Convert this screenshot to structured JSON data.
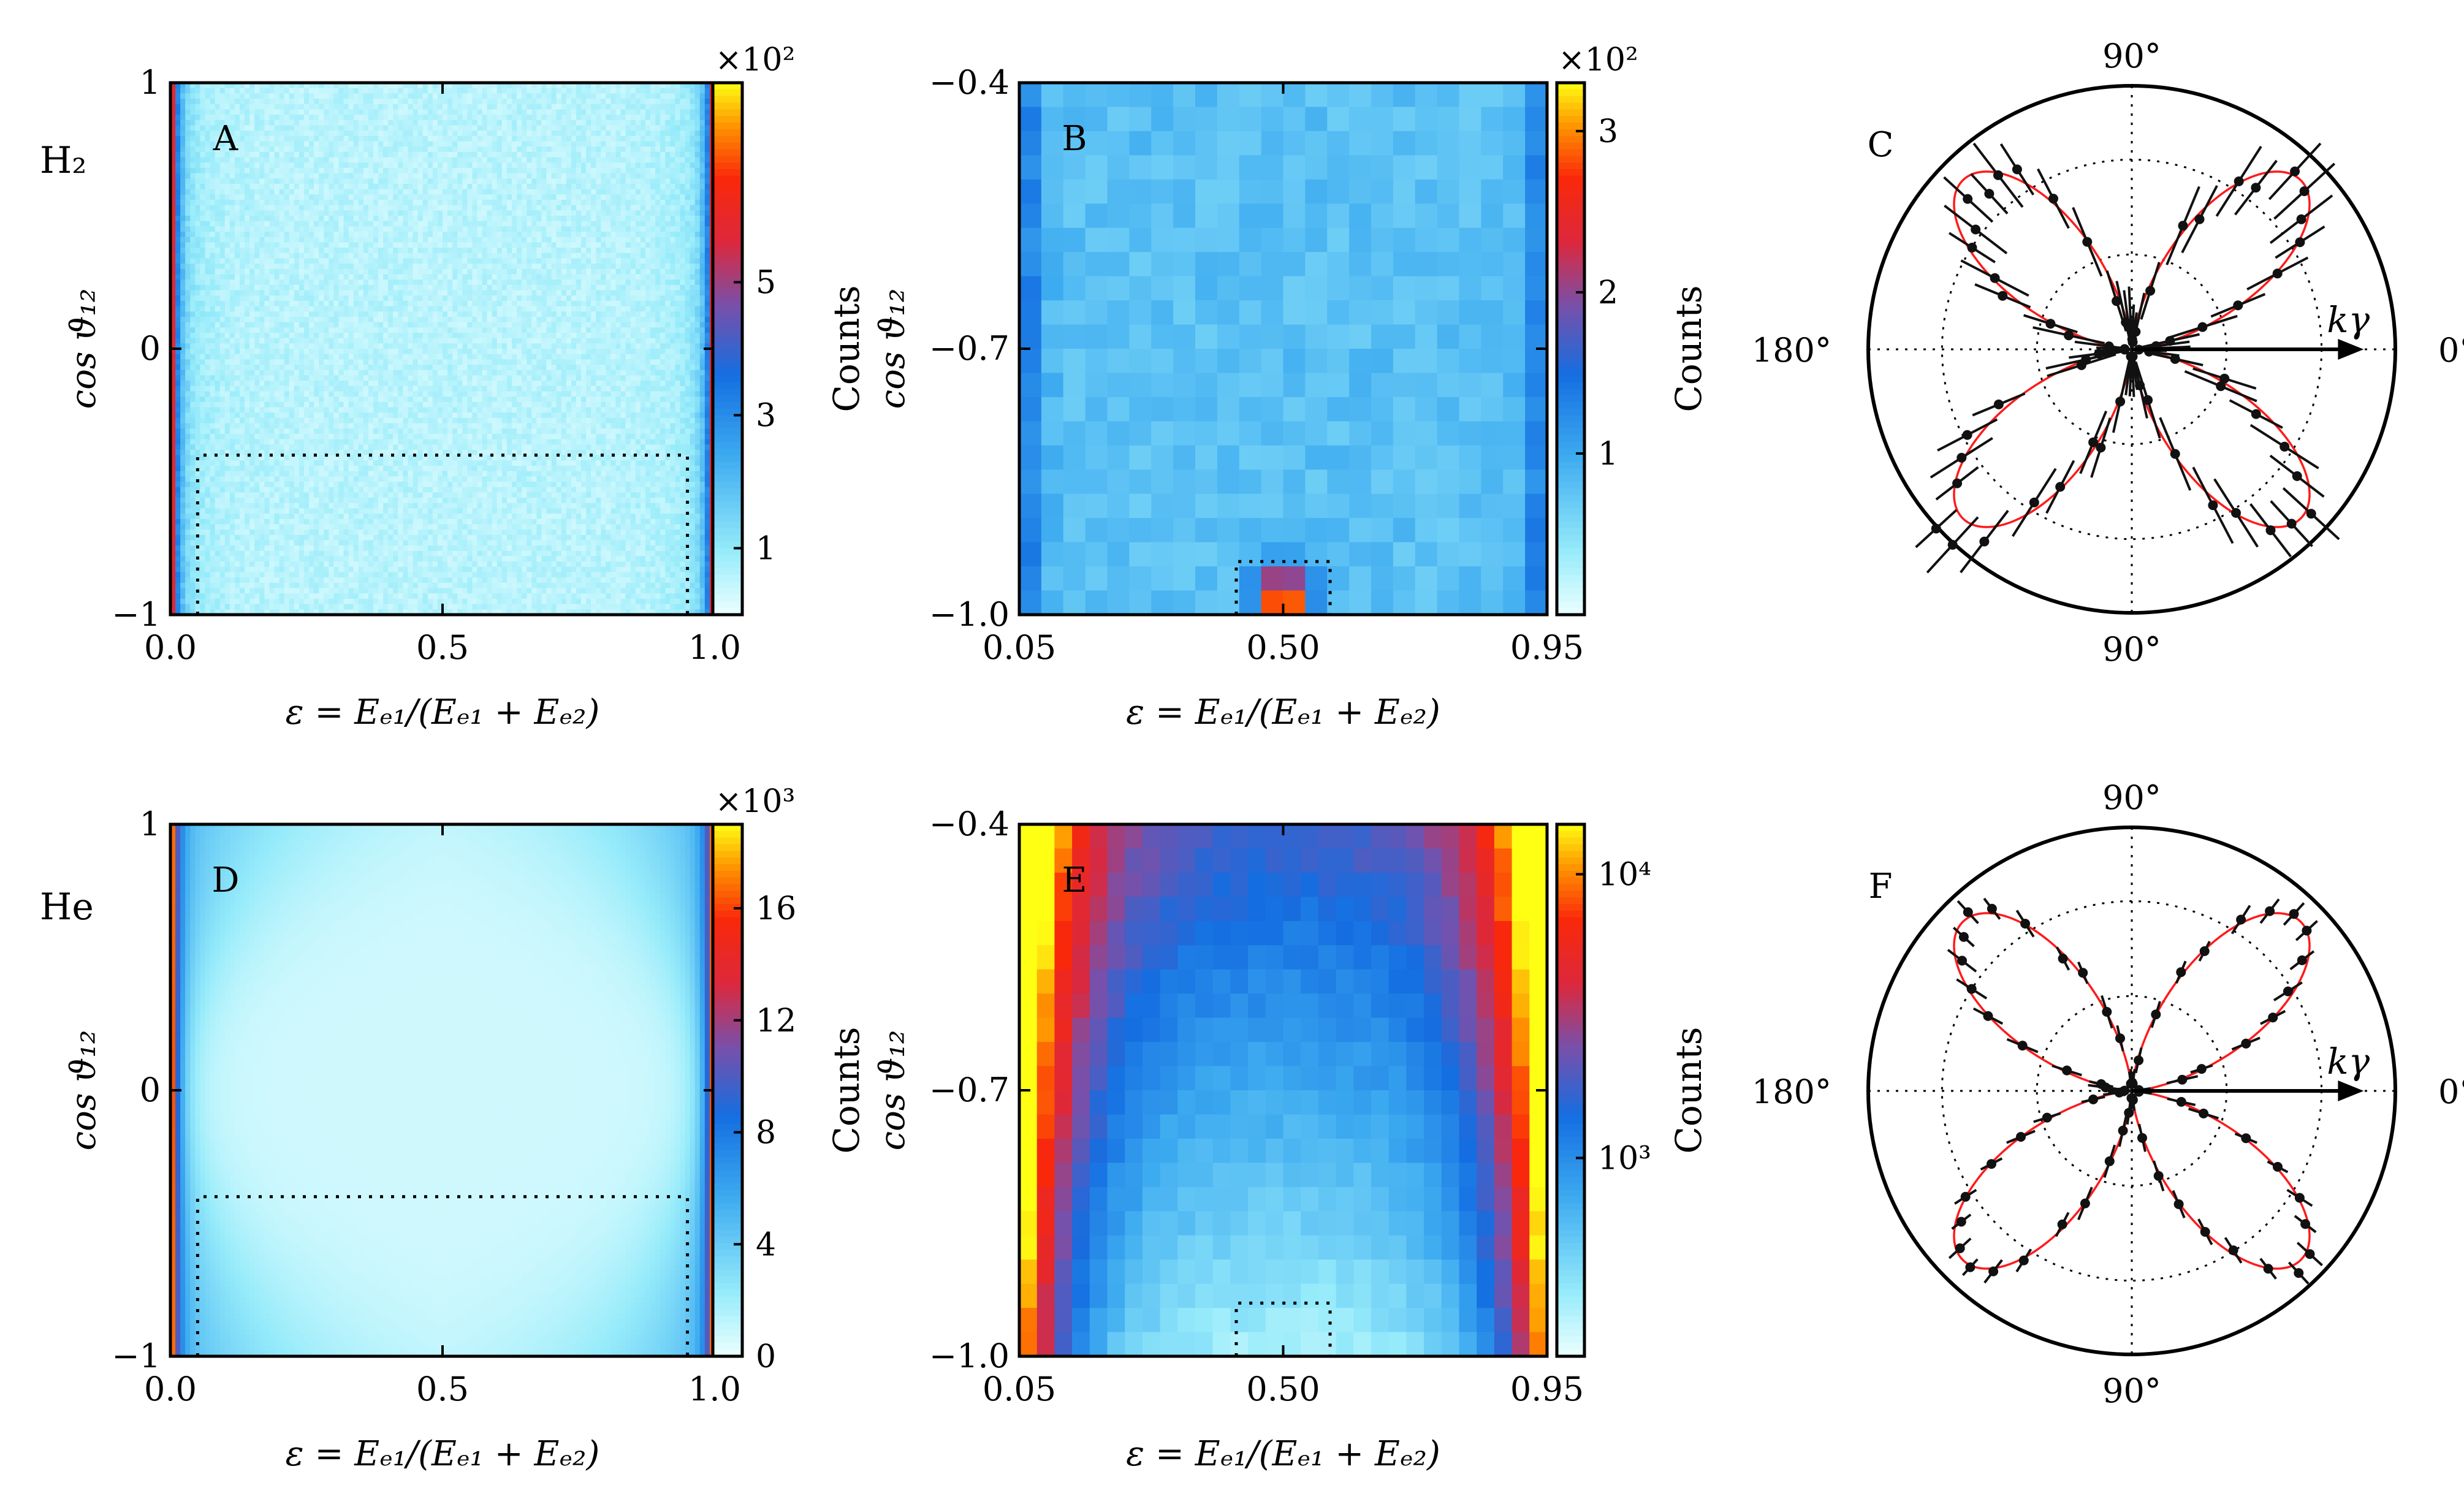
{
  "figure": {
    "gas_labels": [
      "H₂",
      "He"
    ],
    "xlabel": "ε = Eₑ₁/(Eₑ₁ + Eₑ₂)",
    "ylabel": "cos ϑ₁₂",
    "colorbar_label": "Counts",
    "photon_axis_label": "kγ",
    "polar_tick_labels": [
      "90°",
      "0°",
      "90°",
      "180°"
    ]
  },
  "chart_data": [
    {
      "panel": "A",
      "type": "heatmap",
      "gas": "H₂",
      "title": "A",
      "xlabel": "ε = Eₑ₁/(Eₑ₁ + Eₑ₂)",
      "ylabel": "cos ϑ₁₂",
      "xlim": [
        0.0,
        1.0
      ],
      "ylim": [
        -1,
        1
      ],
      "xticks": [
        "0.0",
        "0.5",
        "1.0"
      ],
      "yticks": [
        "1",
        "0",
        "−1"
      ],
      "colorbar": {
        "label": "Counts",
        "exponent": "×10²",
        "min": 0,
        "max": 8,
        "ticks": [
          "1",
          "3",
          "5"
        ],
        "scale": "linear"
      },
      "description": "Counts peak at ε ≈ 0 and ε ≈ 1 edges (~7–8×10²); interior is low (~0.3×10²).",
      "selection_box": {
        "x": [
          0.05,
          0.95
        ],
        "y": [
          -1.0,
          -0.4
        ]
      }
    },
    {
      "panel": "B",
      "type": "heatmap",
      "gas": "H₂",
      "title": "B",
      "xlabel": "ε = Eₑ₁/(Eₑ₁ + Eₑ₂)",
      "ylabel": "cos ϑ₁₂",
      "xlim": [
        0.05,
        0.95
      ],
      "ylim": [
        -1.0,
        -0.4
      ],
      "xticks": [
        "0.05",
        "0.50",
        "0.95"
      ],
      "yticks": [
        "−0.4",
        "−0.7",
        "−1.0"
      ],
      "colorbar": {
        "label": "Counts",
        "exponent": "×10²",
        "min": 0,
        "max": 3.3,
        "ticks": [
          "1",
          "2",
          "3"
        ],
        "scale": "linear"
      },
      "description": "Zoom of dashed region in A; hot spot (~3.3×10²) at ε = 0.50, cosϑ₁₂ = −1.",
      "selection_box": {
        "x": [
          0.42,
          0.58
        ],
        "y": [
          -1.0,
          -0.94
        ]
      }
    },
    {
      "panel": "C",
      "type": "scatter",
      "subtype": "polar",
      "gas": "H₂",
      "title": "C",
      "angular_ticks": [
        "0°",
        "90°",
        "180°",
        "90°"
      ],
      "arrow_label": "kγ",
      "series": [
        {
          "name": "measured",
          "color": "#111111",
          "marker": "point with error bars"
        },
        {
          "name": "fit",
          "color": "#ff0000",
          "form": "r ∝ sin²(2θ)"
        }
      ]
    },
    {
      "panel": "D",
      "type": "heatmap",
      "gas": "He",
      "title": "D",
      "xlabel": "ε = Eₑ₁/(Eₑ₁ + Eₑ₂)",
      "ylabel": "cos ϑ₁₂",
      "xlim": [
        0.0,
        1.0
      ],
      "ylim": [
        -1,
        1
      ],
      "xticks": [
        "0.0",
        "0.5",
        "1.0"
      ],
      "yticks": [
        "1",
        "0",
        "−1"
      ],
      "colorbar": {
        "label": "Counts",
        "exponent": "×10³",
        "min": 0,
        "max": 19,
        "ticks": [
          "0",
          "4",
          "8",
          "12",
          "16"
        ],
        "scale": "linear"
      },
      "description": "Counts peak at ε ≈ 0 and ε ≈ 1 edges (~18×10³); interior ~1×10³.",
      "selection_box": {
        "x": [
          0.05,
          0.95
        ],
        "y": [
          -1.0,
          -0.4
        ]
      }
    },
    {
      "panel": "E",
      "type": "heatmap",
      "gas": "He",
      "title": "E",
      "xlabel": "ε = Eₑ₁/(Eₑ₁ + Eₑ₂)",
      "ylabel": "cos ϑ₁₂",
      "xlim": [
        0.05,
        0.95
      ],
      "ylim": [
        -1.0,
        -0.4
      ],
      "xticks": [
        "0.05",
        "0.50",
        "0.95"
      ],
      "yticks": [
        "−0.4",
        "−0.7",
        "−1.0"
      ],
      "colorbar": {
        "label": "Counts",
        "min": 200,
        "max": 15000,
        "ticks": [
          "10³",
          "10⁴"
        ],
        "scale": "log"
      },
      "description": "Zoom of dashed region in D; log scale, high at ε edges, lowest near ε = 0.5, cosϑ₁₂ = −1.",
      "selection_box": {
        "x": [
          0.42,
          0.58
        ],
        "y": [
          -1.0,
          -0.94
        ]
      }
    },
    {
      "panel": "F",
      "type": "scatter",
      "subtype": "polar",
      "gas": "He",
      "title": "F",
      "angular_ticks": [
        "0°",
        "90°",
        "180°",
        "90°"
      ],
      "arrow_label": "kγ",
      "series": [
        {
          "name": "measured",
          "color": "#111111",
          "marker": "point with error bars"
        },
        {
          "name": "fit",
          "color": "#ff0000",
          "form": "r ∝ sin²(2θ)"
        }
      ]
    }
  ]
}
